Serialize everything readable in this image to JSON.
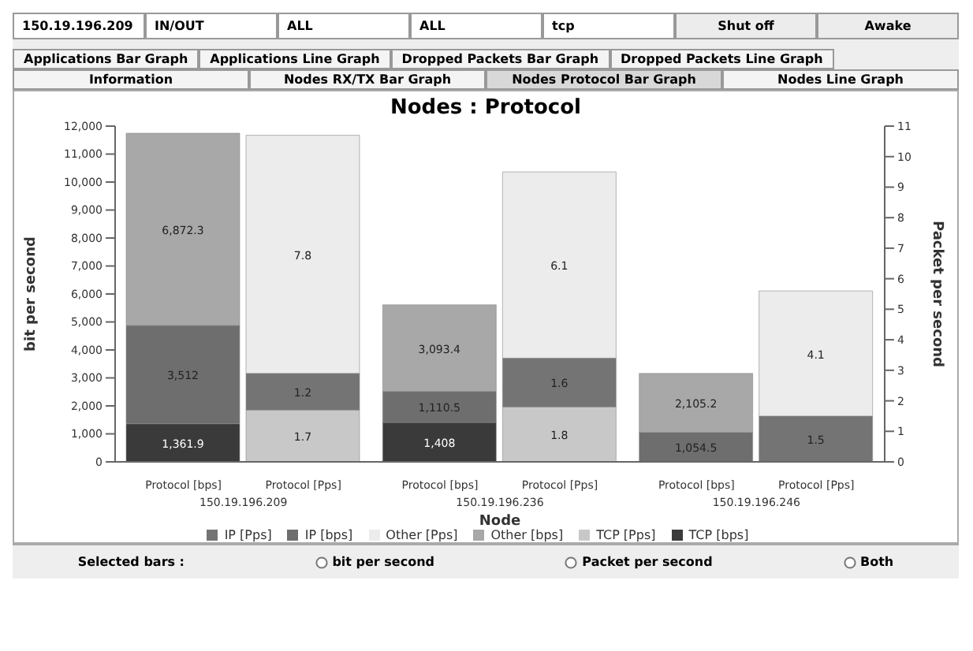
{
  "chart_data": {
    "type": "bar",
    "title": "Nodes : Protocol",
    "xlabel": "Node",
    "ylabel": "bit per second",
    "y2label": "Packet per second",
    "categories": [
      "150.19.196.209",
      "150.19.196.236",
      "150.19.196.246"
    ],
    "stacked": true,
    "legend": "bottom",
    "grid": false,
    "ylim": [
      0,
      12000
    ],
    "yticks": [
      0,
      {
        "value": 1000,
        "label": "1,000"
      },
      {
        "value": 2000,
        "label": "2,000"
      },
      {
        "value": 3000,
        "label": "3,000"
      },
      {
        "value": 4000,
        "label": "4,000"
      },
      {
        "value": 5000,
        "label": "5,000"
      },
      {
        "value": 6000,
        "label": "6,000"
      },
      {
        "value": 7000,
        "label": "7,000"
      },
      {
        "value": 8000,
        "label": "8,000"
      },
      {
        "value": 9000,
        "label": "9,000"
      },
      {
        "value": 10000,
        "label": "10,000"
      },
      {
        "value": 11000,
        "label": "11,000"
      },
      {
        "value": 12000,
        "label": "12,000"
      }
    ],
    "y2lim": [
      0,
      11
    ],
    "y2ticks": [
      0,
      1,
      2,
      3,
      4,
      5,
      6,
      7,
      8,
      9,
      10,
      11
    ],
    "series": [
      {
        "name": "TCP [bps]",
        "color": "#3a3a3a",
        "values": [
          1361.9,
          1408,
          null
        ],
        "value_labels": [
          "1,361.9",
          "1,408",
          null
        ]
      },
      {
        "name": "IP [bps]",
        "color": "#6e6e6e",
        "values": [
          3512,
          1110.5,
          1054.5
        ],
        "value_labels": [
          "3,512",
          "1,110.5",
          "1,054.5"
        ]
      },
      {
        "name": "Other [bps]",
        "color": "#a8a8a8",
        "values": [
          6872.3,
          3093.4,
          2105.2
        ],
        "value_labels": [
          "6,872.3",
          "3,093.4",
          "2,105.2"
        ]
      },
      {
        "name": "TCP [Pps]",
        "color": "#c8c8c8",
        "axis": "y2",
        "values": [
          1.7,
          1.8,
          null
        ],
        "value_labels": [
          "1.7",
          "1.8",
          null
        ]
      },
      {
        "name": "IP [Pps]",
        "color": "#747474",
        "axis": "y2",
        "values": [
          1.2,
          1.6,
          1.5
        ],
        "value_labels": [
          "1.2",
          "1.6",
          "1.5"
        ]
      },
      {
        "name": "Other [Pps]",
        "color": "#ececec",
        "axis": "y2",
        "values": [
          7.8,
          6.1,
          4.1
        ],
        "value_labels": [
          "7.8",
          "6.1",
          "4.1"
        ]
      }
    ],
    "annotations": [
      "Protocol [bps]",
      "Protocol [Pps]",
      "Protocol [bps]",
      "Protocol [Pps]",
      "Protocol [bps]",
      "Protocol [Pps]",
      "150.19.196.209",
      "IN/OUT",
      "ALL",
      "ALL",
      "tcp",
      "Shut off",
      "Awake",
      "Applications Bar Graph",
      "Applications Line Graph",
      "Dropped Packets Bar Graph",
      "Dropped Packets Line Graph",
      "Information",
      "Nodes RX/TX Bar Graph",
      "Nodes Protocol Bar Graph",
      "Nodes Line Graph",
      "Selected bars :",
      "bit per second",
      "Packet per second",
      "Both"
    ]
  }
}
